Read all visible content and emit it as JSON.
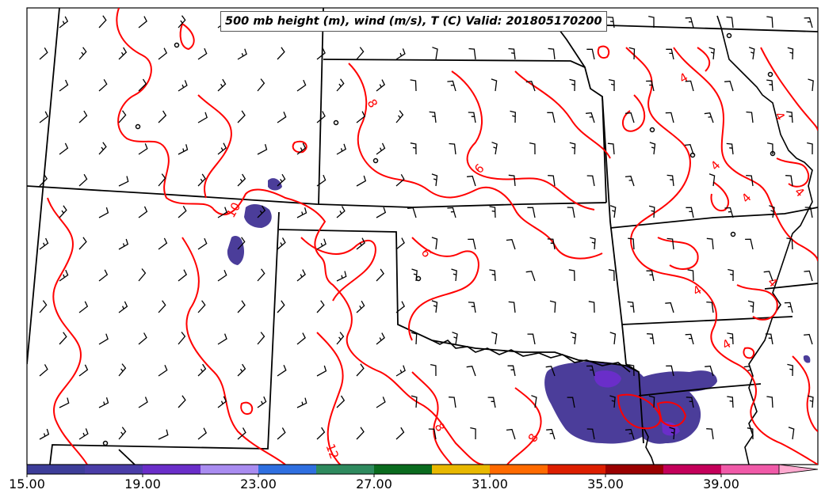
{
  "title": "500 mb height (m), wind (m/s), T (C) Valid: 201805170200",
  "colorbar": {
    "tick_labels": [
      "15.00",
      "19.00",
      "23.00",
      "27.00",
      "31.00",
      "35.00",
      "39.00"
    ],
    "colors": [
      "#3d3d99",
      "#4a3da8",
      "#6a2ec9",
      "#a98cf0",
      "#2f6fe0",
      "#2e8a5e",
      "#0a6b1e",
      "#e8b800",
      "#ff6a00",
      "#dd1e00",
      "#9a0000",
      "#c4005a",
      "#f05aa8",
      "#ffaad0"
    ]
  },
  "contour_labels": [
    "8",
    "6",
    "6",
    "10",
    "4",
    "4",
    "4",
    "4",
    "4",
    "4",
    "4",
    "4",
    "8",
    "8",
    "12"
  ],
  "colors": {
    "temperature_contour": "#ff0000",
    "boundaries": "#000000",
    "barbs": "#000000",
    "wind_fill": "#4b3d9a",
    "wind_core": "#6a2ec9"
  }
}
